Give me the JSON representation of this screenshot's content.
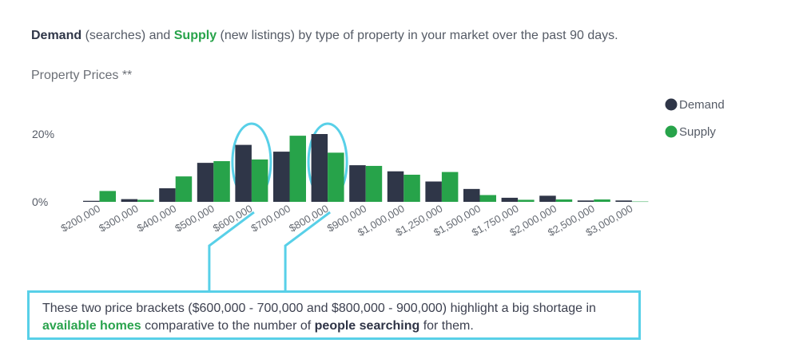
{
  "header": {
    "demand_word": "Demand",
    "demand_note": "(searches) and",
    "supply_word": "Supply",
    "rest": "(new listings) by type of property in your market over the past 90 days."
  },
  "subtitle": "Property Prices **",
  "note": {
    "part1": "These two price brackets ($600,000 - 700,000 and $800,000 - 900,000) highlight a big shortage in",
    "highlight1": "available homes",
    "part2": "comparative to the number of",
    "highlight2": "people searching",
    "part3": "for them."
  },
  "colors": {
    "demand": "#2f3648",
    "supply": "#27a34a",
    "highlight": "#58d0e8"
  },
  "chart_data": {
    "type": "bar",
    "title": "Property Prices **",
    "categories": [
      "$200,000",
      "$300,000",
      "$400,000",
      "$500,000",
      "$600,000",
      "$700,000",
      "$800,000",
      "$900,000",
      "$1,000,000",
      "$1,250,000",
      "$1,500,000",
      "$1,750,000",
      "$2,000,000",
      "$2,500,000",
      "$3,000,000"
    ],
    "series": [
      {
        "name": "Demand",
        "values": [
          0.3,
          0.8,
          4.0,
          11.5,
          16.8,
          14.8,
          20.0,
          10.8,
          9.0,
          6.0,
          3.8,
          1.2,
          1.8,
          0.4,
          0.4
        ]
      },
      {
        "name": "Supply",
        "values": [
          3.2,
          0.6,
          7.5,
          12.0,
          12.5,
          19.5,
          14.5,
          10.6,
          8.0,
          8.8,
          2.0,
          0.6,
          0.7,
          0.7,
          0.1
        ]
      }
    ],
    "yticks": [
      "0%",
      "20%"
    ],
    "ylim": [
      0,
      20
    ],
    "legend": "top-right",
    "grid": false,
    "highlighted_categories": [
      "$600,000",
      "$800,000"
    ]
  }
}
